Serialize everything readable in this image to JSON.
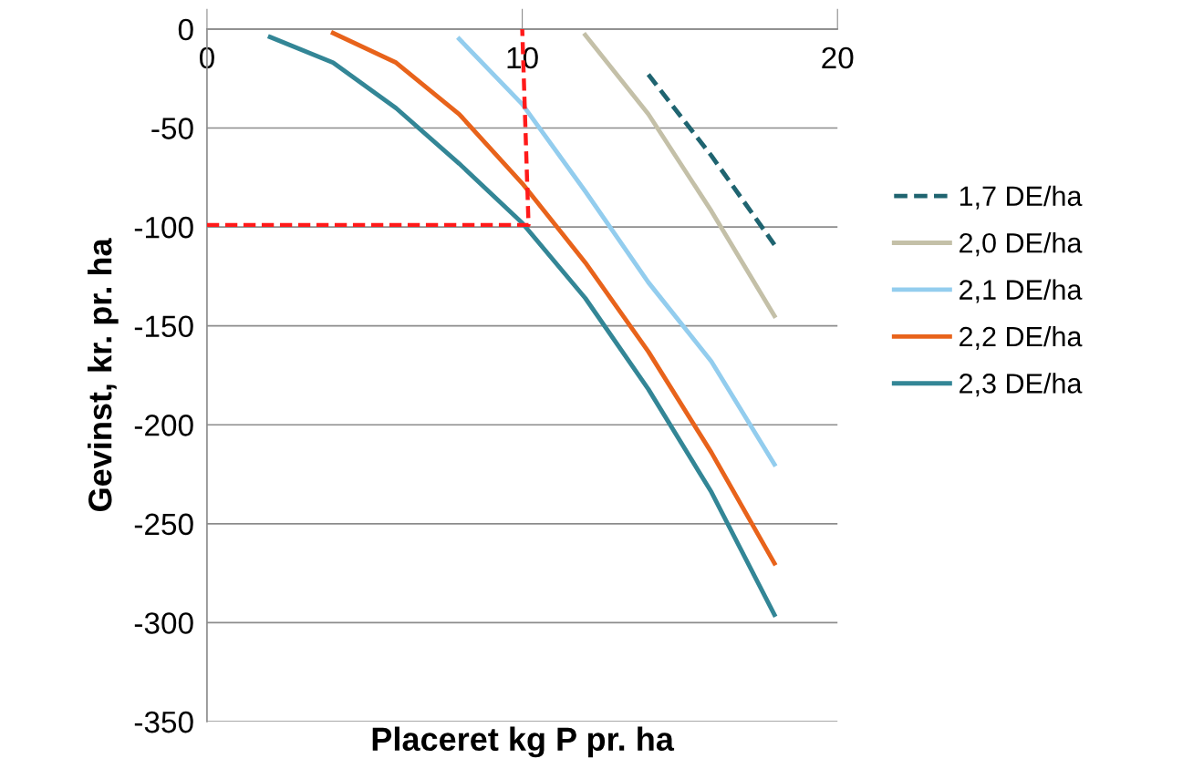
{
  "chart_data": {
    "type": "line",
    "xlabel": "Placeret kg P pr. ha",
    "ylabel": "Gevinst, kr. pr. ha",
    "xlim": [
      0,
      20
    ],
    "xticks": [
      0,
      10,
      20
    ],
    "ylim": [
      -350,
      0
    ],
    "yticks": [
      -350,
      -300,
      -250,
      -200,
      -150,
      -100,
      -50,
      0
    ],
    "grid": "y",
    "legend": "right",
    "marker": "none",
    "series": [
      {
        "name": "1,7 DE/ha",
        "color": "#1f6470",
        "line_style": "dashed",
        "x": [
          14,
          16,
          18
        ],
        "values": [
          -23,
          -64,
          -109
        ]
      },
      {
        "name": "2,0 DE/ha",
        "color": "#c4c0a8",
        "line_style": "solid",
        "x": [
          12,
          14,
          16,
          18
        ],
        "values": [
          -3,
          -43,
          -92,
          -145
        ]
      },
      {
        "name": "2,1 DE/ha",
        "color": "#93cdee",
        "line_style": "solid",
        "x": [
          8,
          10,
          12,
          14,
          16,
          18
        ],
        "values": [
          -5,
          -38,
          -82,
          -128,
          -168,
          -220
        ]
      },
      {
        "name": "2,2 DE/ha",
        "color": "#e8631b",
        "line_style": "solid",
        "x": [
          4,
          6,
          8,
          10,
          12,
          14,
          16,
          18
        ],
        "values": [
          -2,
          -17,
          -43,
          -78,
          -118,
          -163,
          -214,
          -270
        ]
      },
      {
        "name": "2,3 DE/ha",
        "color": "#338696",
        "line_style": "solid",
        "x": [
          2,
          4,
          6,
          8,
          10,
          12,
          14,
          16,
          18
        ],
        "values": [
          -4,
          -17,
          -40,
          -68,
          -98,
          -136,
          -182,
          -234,
          -296
        ]
      },
      {
        "color": "#ff1a1a",
        "line_style": "dashed",
        "x": [
          0,
          10.2,
          10
        ],
        "values": [
          -99,
          -99,
          0
        ]
      }
    ]
  }
}
